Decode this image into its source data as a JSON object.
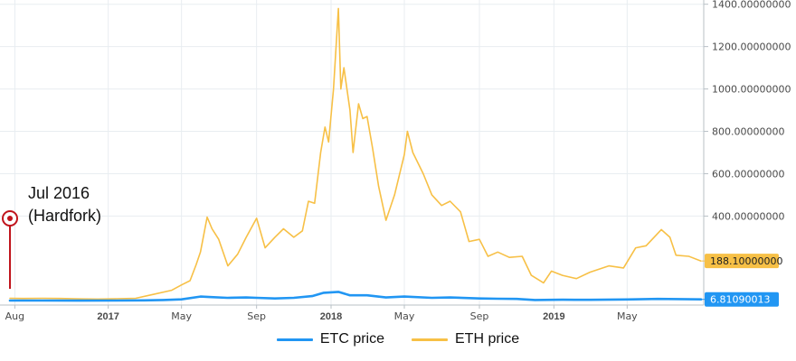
{
  "colors": {
    "etc": "#2196f3",
    "eth": "#f7c046",
    "annotation": "#c0141c",
    "grid": "#e8edf1",
    "axis": "#b9c0c6"
  },
  "chart_data": {
    "type": "line",
    "y_scale": "linear",
    "ylim": [
      -20,
      1420
    ],
    "xlim": [
      "2016-07-24",
      "2019-08-30"
    ],
    "grid": true,
    "legend_position": "bottom-center",
    "y_ticks": [
      1400,
      1200,
      1000,
      800,
      600,
      400
    ],
    "y_tick_labels": [
      "1400.00000000",
      "1200.00000000",
      "1000.00000000",
      "800.00000000",
      "600.00000000",
      "400.00000000"
    ],
    "x_ticks": [
      {
        "date": "2016-08-01",
        "label": "Aug",
        "bold": false
      },
      {
        "date": "2017-01-01",
        "label": "2017",
        "bold": true
      },
      {
        "date": "2017-05-01",
        "label": "May",
        "bold": false
      },
      {
        "date": "2017-09-01",
        "label": "Sep",
        "bold": false
      },
      {
        "date": "2018-01-01",
        "label": "2018",
        "bold": true
      },
      {
        "date": "2018-05-01",
        "label": "May",
        "bold": false
      },
      {
        "date": "2018-09-01",
        "label": "Sep",
        "bold": false
      },
      {
        "date": "2019-01-01",
        "label": "2019",
        "bold": true
      },
      {
        "date": "2019-05-01",
        "label": "May",
        "bold": false
      }
    ],
    "series": [
      {
        "name": "ETC price",
        "key": "etc",
        "last_value_label": "6.81090013",
        "points": [
          [
            "2016-07-24",
            1.5
          ],
          [
            "2016-09-15",
            1.5
          ],
          [
            "2016-11-15",
            1.0
          ],
          [
            "2017-01-15",
            1.5
          ],
          [
            "2017-03-01",
            2.0
          ],
          [
            "2017-04-01",
            4.0
          ],
          [
            "2017-05-01",
            7.0
          ],
          [
            "2017-06-01",
            20.0
          ],
          [
            "2017-06-15",
            18.0
          ],
          [
            "2017-07-15",
            14.0
          ],
          [
            "2017-08-15",
            16.0
          ],
          [
            "2017-09-01",
            14.0
          ],
          [
            "2017-10-01",
            11.0
          ],
          [
            "2017-11-01",
            14.0
          ],
          [
            "2017-12-01",
            22.0
          ],
          [
            "2017-12-20",
            38.0
          ],
          [
            "2018-01-13",
            42.0
          ],
          [
            "2018-02-01",
            26.0
          ],
          [
            "2018-03-01",
            26.0
          ],
          [
            "2018-04-01",
            16.0
          ],
          [
            "2018-05-01",
            20.0
          ],
          [
            "2018-06-15",
            14.0
          ],
          [
            "2018-07-15",
            16.0
          ],
          [
            "2018-09-01",
            11.0
          ],
          [
            "2018-10-01",
            10.0
          ],
          [
            "2018-11-01",
            9.0
          ],
          [
            "2018-12-01",
            4.0
          ],
          [
            "2019-01-15",
            5.0
          ],
          [
            "2019-03-01",
            4.5
          ],
          [
            "2019-05-01",
            6.5
          ],
          [
            "2019-06-20",
            9.0
          ],
          [
            "2019-08-30",
            6.81
          ]
        ]
      },
      {
        "name": "ETH price",
        "key": "eth",
        "last_value_label": "188.10000000",
        "points": [
          [
            "2016-07-24",
            12
          ],
          [
            "2016-08-15",
            11
          ],
          [
            "2016-09-15",
            12
          ],
          [
            "2016-10-15",
            11
          ],
          [
            "2016-11-15",
            9
          ],
          [
            "2016-12-15",
            8
          ],
          [
            "2017-01-15",
            10
          ],
          [
            "2017-02-15",
            12
          ],
          [
            "2017-03-15",
            30
          ],
          [
            "2017-04-15",
            50
          ],
          [
            "2017-05-01",
            75
          ],
          [
            "2017-05-15",
            95
          ],
          [
            "2017-05-25",
            170
          ],
          [
            "2017-06-01",
            230
          ],
          [
            "2017-06-12",
            395
          ],
          [
            "2017-06-20",
            340
          ],
          [
            "2017-07-01",
            290
          ],
          [
            "2017-07-16",
            165
          ],
          [
            "2017-08-01",
            220
          ],
          [
            "2017-08-15",
            300
          ],
          [
            "2017-09-01",
            390
          ],
          [
            "2017-09-15",
            250
          ],
          [
            "2017-10-01",
            300
          ],
          [
            "2017-10-15",
            340
          ],
          [
            "2017-11-01",
            300
          ],
          [
            "2017-11-15",
            330
          ],
          [
            "2017-11-25",
            470
          ],
          [
            "2017-12-05",
            460
          ],
          [
            "2017-12-15",
            700
          ],
          [
            "2017-12-22",
            820
          ],
          [
            "2017-12-28",
            750
          ],
          [
            "2018-01-05",
            1000
          ],
          [
            "2018-01-13",
            1380
          ],
          [
            "2018-01-17",
            1000
          ],
          [
            "2018-01-22",
            1100
          ],
          [
            "2018-02-01",
            900
          ],
          [
            "2018-02-06",
            700
          ],
          [
            "2018-02-15",
            930
          ],
          [
            "2018-02-22",
            860
          ],
          [
            "2018-03-01",
            870
          ],
          [
            "2018-03-10",
            720
          ],
          [
            "2018-03-20",
            540
          ],
          [
            "2018-04-01",
            380
          ],
          [
            "2018-04-15",
            500
          ],
          [
            "2018-05-01",
            690
          ],
          [
            "2018-05-06",
            800
          ],
          [
            "2018-05-15",
            700
          ],
          [
            "2018-06-01",
            600
          ],
          [
            "2018-06-15",
            500
          ],
          [
            "2018-07-01",
            450
          ],
          [
            "2018-07-15",
            470
          ],
          [
            "2018-08-01",
            420
          ],
          [
            "2018-08-15",
            280
          ],
          [
            "2018-09-01",
            290
          ],
          [
            "2018-09-15",
            210
          ],
          [
            "2018-10-01",
            230
          ],
          [
            "2018-10-20",
            205
          ],
          [
            "2018-11-10",
            210
          ],
          [
            "2018-11-25",
            120
          ],
          [
            "2018-12-15",
            85
          ],
          [
            "2018-12-28",
            140
          ],
          [
            "2019-01-15",
            120
          ],
          [
            "2019-02-07",
            105
          ],
          [
            "2019-03-01",
            135
          ],
          [
            "2019-04-01",
            165
          ],
          [
            "2019-04-25",
            155
          ],
          [
            "2019-05-15",
            250
          ],
          [
            "2019-06-01",
            260
          ],
          [
            "2019-06-26",
            336
          ],
          [
            "2019-07-10",
            300
          ],
          [
            "2019-07-20",
            215
          ],
          [
            "2019-08-10",
            210
          ],
          [
            "2019-08-30",
            188.1
          ]
        ]
      }
    ],
    "annotations": [
      {
        "date": "2016-07-24",
        "lines": [
          "Jul 2016",
          "(Hardfork)"
        ]
      }
    ]
  }
}
